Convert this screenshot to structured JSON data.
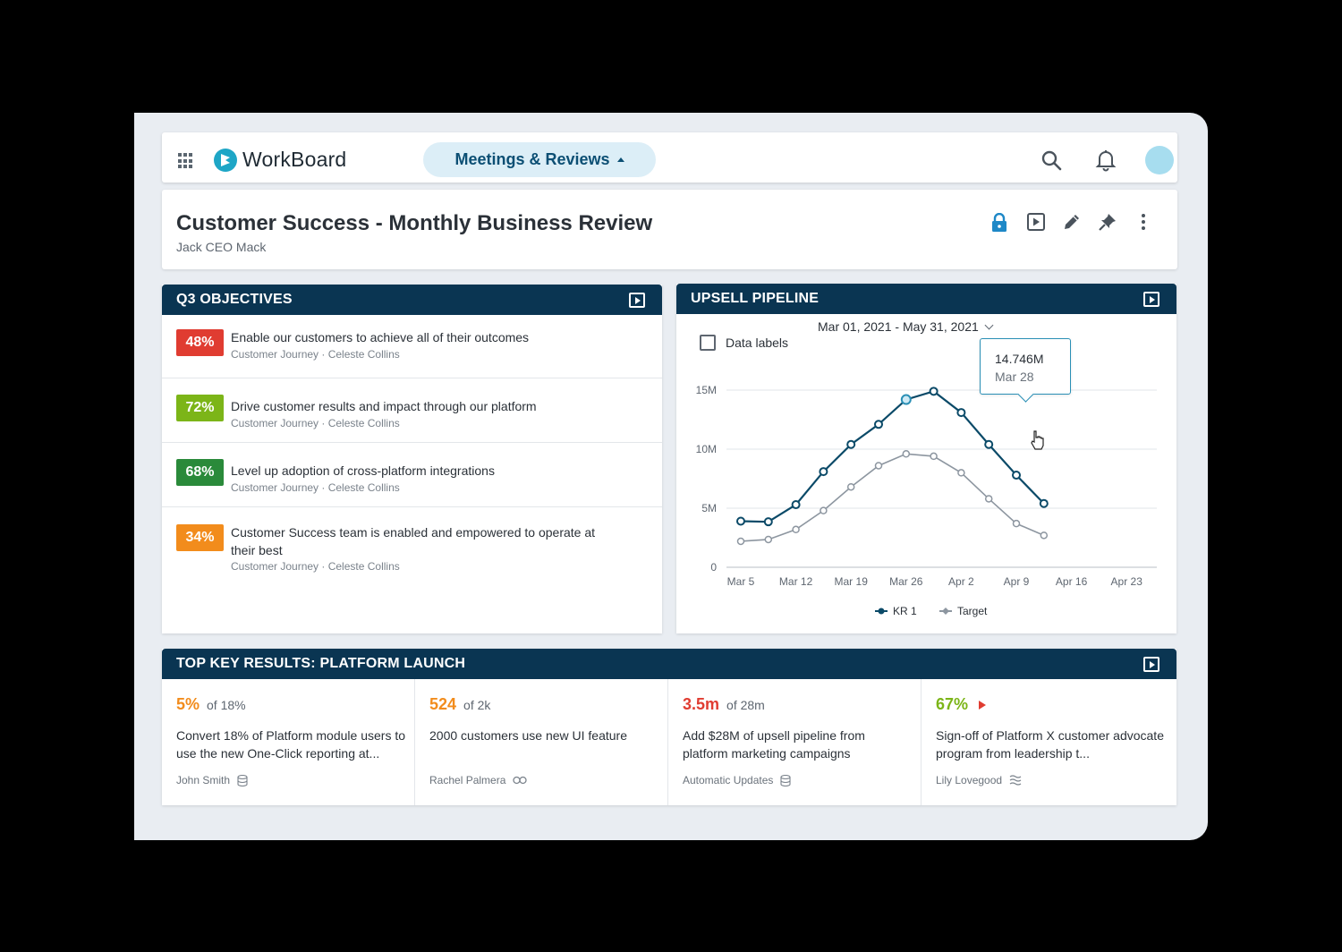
{
  "app": {
    "brand": "WorkBoard",
    "nav_label": "Meetings & Reviews"
  },
  "header": {
    "title": "Customer Success - Monthly Business Review",
    "owner": "Jack CEO Mack"
  },
  "objectives": {
    "title": "Q3 OBJECTIVES",
    "items": [
      {
        "percent": "48%",
        "color": "#e03c31",
        "title": "Enable our customers to achieve all of their outcomes",
        "meta": "Customer Journey  ·  Celeste Collins"
      },
      {
        "percent": "72%",
        "color": "#7cb518",
        "title": "Drive customer results and impact through our platform",
        "meta": "Customer Journey  ·  Celeste Collins"
      },
      {
        "percent": "68%",
        "color": "#2a8a3a",
        "title": "Level up adoption of cross-platform integrations",
        "meta": "Customer Journey  ·  Celeste Collins"
      },
      {
        "percent": "34%",
        "color": "#f28c1c",
        "title": "Customer Success team is enabled and empowered to operate at their best",
        "meta": "Customer Journey  ·  Celeste Collins"
      }
    ]
  },
  "pipeline": {
    "title": "UPSELL PIPELINE",
    "date_range": "Mar 01, 2021 - May 31, 2021",
    "data_labels_label": "Data labels",
    "tooltip_value": "14.746M",
    "tooltip_date": "Mar 28"
  },
  "chart_data": {
    "type": "line",
    "x_ticks": [
      "Mar 5",
      "Mar 12",
      "Mar 19",
      "Mar 26",
      "Apr 2",
      "Apr 9",
      "Apr 16",
      "Apr 23"
    ],
    "y_ticks": [
      "0",
      "5M",
      "10M",
      "15M"
    ],
    "ylim": [
      0,
      15
    ],
    "x": [
      0,
      0.5,
      1.0,
      1.5,
      2.0,
      2.5,
      3.0,
      3.5,
      4.0,
      4.5,
      5.0,
      5.5
    ],
    "series": [
      {
        "name": "KR 1",
        "color": "#0b4a68",
        "values": [
          3.9,
          3.85,
          5.3,
          8.1,
          10.4,
          12.1,
          14.2,
          14.9,
          13.1,
          10.4,
          7.8,
          5.4
        ]
      },
      {
        "name": "Target",
        "color": "#8d96a0",
        "values": [
          2.2,
          2.35,
          3.2,
          4.8,
          6.8,
          8.6,
          9.6,
          9.4,
          8.0,
          5.8,
          3.7,
          2.7
        ]
      }
    ],
    "legend": "bottom",
    "grid": true
  },
  "key_results": {
    "title": "TOP KEY RESULTS: PLATFORM LAUNCH",
    "items": [
      {
        "value": "5%",
        "of": "of 18%",
        "color": "#f28c1c",
        "desc": "Convert 18% of Platform module users to use the new One-Click reporting at...",
        "owner": "John Smith",
        "icon": "database-icon"
      },
      {
        "value": "524",
        "of": "of 2k",
        "color": "#f28c1c",
        "desc": "2000 customers use new UI feature",
        "owner": "Rachel Palmera",
        "icon": "link-icon"
      },
      {
        "value": "3.5m",
        "of": "of 28m",
        "color": "#e03c31",
        "desc": "Add $28M of upsell pipeline from platform marketing campaigns",
        "owner": "Automatic Updates",
        "icon": "database-icon"
      },
      {
        "value": "67%",
        "of": "",
        "color": "#7cb518",
        "desc": "Sign-off of Platform X customer advocate program from leadership t...",
        "owner": "Lily Lovegood",
        "icon": "stack-icon"
      }
    ]
  }
}
